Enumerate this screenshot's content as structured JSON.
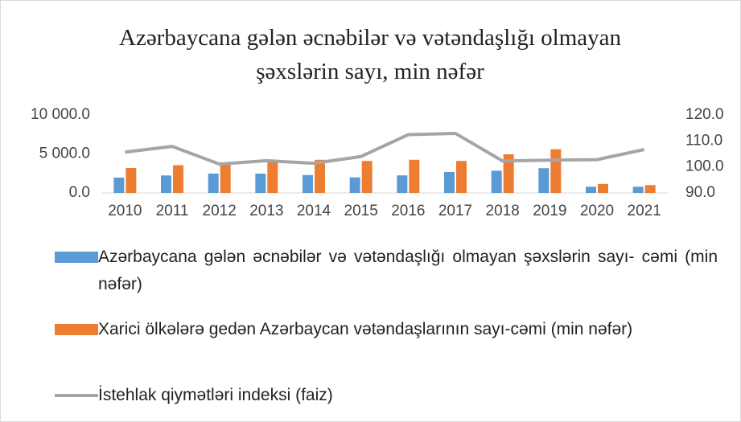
{
  "chart_data": {
    "type": "bar-line",
    "title": "Azərbaycana gələn əcnəbilər və vətəndaşlığı olmayan şəxslərin sayı, min nəfər",
    "categories": [
      "2010",
      "2011",
      "2012",
      "2013",
      "2014",
      "2015",
      "2016",
      "2017",
      "2018",
      "2019",
      "2020",
      "2021"
    ],
    "series": [
      {
        "name": "Azərbaycana gələn əcnəbilər və vətəndaşlığı olmayan şəxslərin sayı- cəmi  (min nəfər)",
        "color": "#5b9bd5",
        "type": "bar",
        "values": [
          1963,
          2239,
          2484,
          2474,
          2297,
          1991,
          2250,
          2691,
          2850,
          3171,
          796,
          792
        ]
      },
      {
        "name": "Xarici ölkələrə gedən Azərbaycan vətəndaşlarının sayı-cəmi (min nəfər)",
        "color": "#ed7d31",
        "type": "bar",
        "values": [
          3200,
          3550,
          3900,
          4150,
          4250,
          4100,
          4250,
          4100,
          4950,
          5600,
          1150,
          1000
        ]
      },
      {
        "name": "İstehlak qiymətləri indeksi  (faiz)",
        "color": "#a5a5a5",
        "type": "line",
        "axis": "y2",
        "values": [
          105.7,
          107.9,
          101.1,
          102.4,
          101.4,
          104.0,
          112.4,
          112.9,
          102.3,
          102.6,
          102.8,
          106.7
        ]
      }
    ],
    "ylim": [
      0,
      10000
    ],
    "yticks": [
      {
        "value": 0,
        "label": "0.0"
      },
      {
        "value": 5000,
        "label": "5 000.0"
      },
      {
        "value": 10000,
        "label": "10 000.0"
      }
    ],
    "y2lim": [
      90,
      120
    ],
    "y2ticks": [
      {
        "value": 90,
        "label": "90.0"
      },
      {
        "value": 100,
        "label": "100.0"
      },
      {
        "value": 110,
        "label": "110.0"
      },
      {
        "value": 120,
        "label": "120.0"
      }
    ],
    "grid": false,
    "legend": "bottom"
  }
}
